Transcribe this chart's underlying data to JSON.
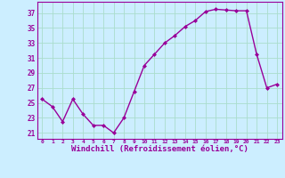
{
  "x": [
    0,
    1,
    2,
    3,
    4,
    5,
    6,
    7,
    8,
    9,
    10,
    11,
    12,
    13,
    14,
    15,
    16,
    17,
    18,
    19,
    20,
    21,
    22,
    23
  ],
  "y": [
    25.5,
    24.5,
    22.5,
    25.5,
    23.5,
    22.0,
    22.0,
    21.0,
    23.0,
    26.5,
    30.0,
    31.5,
    33.0,
    34.0,
    35.2,
    36.0,
    37.2,
    37.5,
    37.4,
    37.3,
    37.3,
    31.5,
    27.0,
    27.5
  ],
  "line_color": "#990099",
  "marker": "D",
  "markersize": 2,
  "linewidth": 1,
  "xlabel": "Windchill (Refroidissement éolien,°C)",
  "xlabel_fontsize": 6.5,
  "bg_color": "#cceeff",
  "grid_color": "#aaddcc",
  "tick_color": "#990099",
  "label_color": "#990099",
  "yticks": [
    21,
    23,
    25,
    27,
    29,
    31,
    33,
    35,
    37
  ],
  "ylim": [
    20.2,
    38.5
  ],
  "xlim": [
    -0.5,
    23.5
  ]
}
